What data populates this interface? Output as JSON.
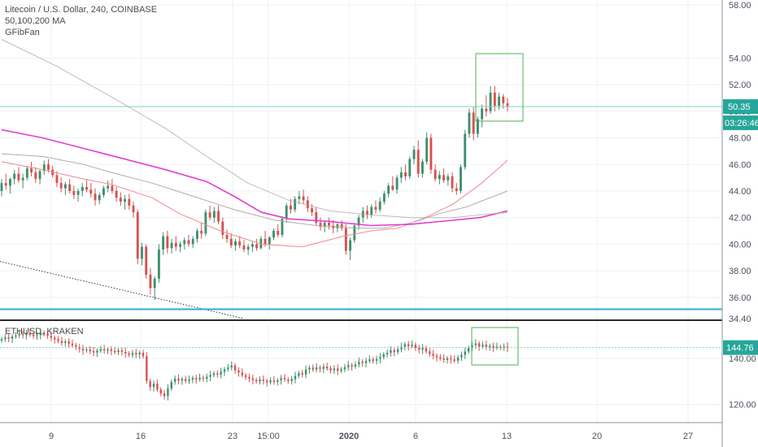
{
  "colors": {
    "up": "#3f8f6f",
    "down": "#d8504f",
    "ma50": "#f28a8a",
    "ma100": "#b7a8a8",
    "ma200": "#e040d0",
    "grid": "#eef1f5",
    "horizontal_line": "#29b0d2",
    "price_line": "#7fd2c8",
    "box": "#4caf50",
    "badge": "#26a69a",
    "axis_border": "#8d939e",
    "separator": "#2b2b2b"
  },
  "main_legend": {
    "symbol": "Litecoin / U.S. Dollar, 240, COINBASE",
    "indicator_ma": "50,100,200 MA",
    "indicator_fib": "GFibFan"
  },
  "sub_legend": {
    "symbol": "ETHUSD, KRAKEN"
  },
  "price_badge": "50.35",
  "countdown_badge": "03:26:46",
  "sub_price_badge": "144.76",
  "chart_data": [
    {
      "type": "candlestick",
      "title": "Litecoin / U.S. Dollar, 240, COINBASE",
      "ylim": [
        34.4,
        58.0
      ],
      "y_ticks": [
        "58.00",
        "54.00",
        "52.00",
        "50.00",
        "48.00",
        "46.00",
        "44.00",
        "42.00",
        "40.00",
        "38.00",
        "36.00",
        "34.40"
      ],
      "x_ticks": [
        "9",
        "16",
        "23",
        "15:00",
        "2020",
        "6",
        "13",
        "20",
        "27"
      ],
      "x_range_days": [
        5,
        33.5
      ],
      "last_price": 50.35,
      "horizontal_line": 35.1,
      "series": [
        {
          "name": "MA 50",
          "values": [
            [
              5,
              46.2
            ],
            [
              8,
              45.6
            ],
            [
              11,
              44.9
            ],
            [
              13,
              44.5
            ],
            [
              16,
              43.5
            ],
            [
              18,
              42.3
            ],
            [
              21,
              41.0
            ],
            [
              24,
              40.0
            ],
            [
              27,
              39.8
            ],
            [
              30,
              40.6
            ],
            [
              32,
              41.0
            ],
            [
              34,
              41.2
            ],
            [
              36,
              42.0
            ],
            [
              38,
              43.0
            ],
            [
              40,
              44.5
            ],
            [
              42,
              46.3
            ]
          ]
        },
        {
          "name": "MA 100",
          "values": [
            [
              5,
              46.8
            ],
            [
              8,
              46.6
            ],
            [
              11,
              46.0
            ],
            [
              13,
              45.4
            ],
            [
              16,
              44.6
            ],
            [
              19,
              43.6
            ],
            [
              22,
              42.6
            ],
            [
              25,
              41.8
            ],
            [
              28,
              41.4
            ],
            [
              31,
              41.2
            ],
            [
              33,
              41.2
            ],
            [
              35,
              41.6
            ],
            [
              37,
              42.3
            ],
            [
              39,
              42.8
            ],
            [
              42,
              44.0
            ]
          ]
        },
        {
          "name": "MA 200",
          "values": [
            [
              5,
              48.6
            ],
            [
              8,
              48.0
            ],
            [
              11,
              47.2
            ],
            [
              14,
              46.4
            ],
            [
              17,
              45.6
            ],
            [
              20,
              44.7
            ],
            [
              22,
              43.6
            ],
            [
              24,
              42.4
            ],
            [
              26,
              41.9
            ],
            [
              29,
              41.7
            ],
            [
              32,
              41.4
            ],
            [
              35,
              41.5
            ],
            [
              38,
              41.8
            ],
            [
              40,
              42.0
            ],
            [
              42,
              42.5
            ]
          ]
        },
        {
          "name": "Fib fan 1",
          "values": [
            [
              5,
              55.4
            ],
            [
              9,
              53.4
            ],
            [
              13,
              51.1
            ],
            [
              17,
              48.7
            ],
            [
              20,
              46.6
            ],
            [
              23,
              44.6
            ],
            [
              26,
              43.3
            ],
            [
              29,
              42.5
            ],
            [
              32,
              42.2
            ],
            [
              35,
              42.0
            ],
            [
              38,
              42.0
            ],
            [
              40,
              42.2
            ],
            [
              42,
              42.4
            ]
          ]
        }
      ],
      "candles": [
        [
          44.0,
          44.9,
          43.6,
          44.6
        ],
        [
          44.6,
          45.3,
          44.1,
          44.4
        ],
        [
          44.4,
          45.0,
          43.8,
          44.9
        ],
        [
          44.9,
          45.6,
          44.5,
          45.3
        ],
        [
          45.3,
          45.8,
          44.6,
          44.8
        ],
        [
          44.8,
          45.3,
          44.2,
          45.0
        ],
        [
          45.0,
          45.9,
          44.8,
          45.7
        ],
        [
          45.7,
          46.2,
          45.1,
          45.4
        ],
        [
          45.4,
          45.8,
          44.6,
          44.9
        ],
        [
          44.9,
          45.6,
          44.5,
          45.5
        ],
        [
          45.5,
          46.3,
          45.2,
          46.0
        ],
        [
          46.0,
          46.4,
          45.4,
          45.6
        ],
        [
          45.6,
          45.9,
          45.0,
          45.2
        ],
        [
          45.2,
          45.5,
          44.3,
          44.6
        ],
        [
          44.6,
          45.0,
          43.9,
          44.2
        ],
        [
          44.2,
          44.7,
          43.7,
          44.5
        ],
        [
          44.5,
          44.9,
          43.8,
          44.0
        ],
        [
          44.0,
          44.4,
          43.4,
          43.7
        ],
        [
          43.7,
          44.2,
          43.2,
          44.0
        ],
        [
          44.0,
          44.6,
          43.6,
          44.3
        ],
        [
          44.3,
          44.9,
          43.9,
          44.1
        ],
        [
          44.1,
          44.6,
          43.5,
          43.8
        ],
        [
          43.8,
          44.2,
          42.9,
          43.3
        ],
        [
          43.3,
          43.9,
          43.0,
          43.7
        ],
        [
          43.7,
          44.4,
          43.5,
          44.2
        ],
        [
          44.2,
          44.8,
          43.9,
          44.4
        ],
        [
          44.4,
          44.9,
          43.8,
          44.0
        ],
        [
          44.0,
          44.3,
          43.2,
          43.5
        ],
        [
          43.5,
          43.9,
          42.9,
          43.2
        ],
        [
          43.2,
          43.7,
          42.6,
          43.4
        ],
        [
          43.4,
          43.8,
          42.6,
          42.9
        ],
        [
          42.9,
          43.2,
          42.0,
          42.4
        ],
        [
          42.4,
          42.6,
          38.5,
          38.9
        ],
        [
          38.9,
          40.1,
          38.4,
          39.8
        ],
        [
          39.8,
          40.0,
          37.4,
          37.7
        ],
        [
          37.7,
          38.2,
          36.2,
          36.7
        ],
        [
          36.7,
          37.6,
          35.8,
          37.4
        ],
        [
          37.4,
          40.0,
          37.1,
          39.6
        ],
        [
          39.6,
          40.9,
          39.2,
          40.6
        ],
        [
          40.6,
          41.0,
          39.3,
          39.7
        ],
        [
          39.7,
          40.4,
          39.3,
          40.1
        ],
        [
          40.1,
          40.6,
          39.5,
          39.8
        ],
        [
          39.8,
          40.2,
          39.4,
          40.0
        ],
        [
          40.0,
          40.5,
          39.6,
          40.3
        ],
        [
          40.3,
          40.7,
          39.8,
          40.0
        ],
        [
          40.0,
          40.6,
          39.7,
          40.4
        ],
        [
          40.4,
          41.2,
          40.1,
          41.0
        ],
        [
          41.0,
          41.6,
          40.4,
          40.8
        ],
        [
          40.8,
          42.6,
          40.6,
          42.4
        ],
        [
          42.4,
          42.9,
          41.8,
          42.0
        ],
        [
          42.0,
          42.8,
          41.6,
          42.5
        ],
        [
          42.5,
          42.9,
          41.5,
          41.7
        ],
        [
          41.7,
          42.0,
          40.4,
          40.7
        ],
        [
          40.7,
          41.1,
          40.1,
          40.4
        ],
        [
          40.4,
          40.8,
          39.7,
          39.9
        ],
        [
          39.9,
          40.4,
          39.5,
          40.2
        ],
        [
          40.2,
          40.6,
          39.7,
          39.9
        ],
        [
          39.9,
          40.3,
          39.4,
          39.6
        ],
        [
          39.6,
          40.0,
          39.2,
          39.8
        ],
        [
          39.8,
          40.2,
          39.4,
          40.0
        ],
        [
          40.0,
          40.4,
          39.5,
          39.7
        ],
        [
          39.7,
          40.6,
          39.6,
          40.4
        ],
        [
          40.4,
          41.0,
          39.8,
          40.0
        ],
        [
          40.0,
          40.6,
          39.6,
          40.5
        ],
        [
          40.5,
          41.2,
          40.3,
          41.0
        ],
        [
          41.0,
          41.5,
          40.5,
          40.7
        ],
        [
          40.7,
          42.1,
          40.5,
          41.9
        ],
        [
          41.9,
          43.1,
          41.6,
          42.9
        ],
        [
          42.9,
          43.4,
          42.3,
          42.6
        ],
        [
          42.6,
          43.6,
          42.4,
          43.4
        ],
        [
          43.4,
          44.0,
          43.0,
          43.6
        ],
        [
          43.6,
          44.1,
          43.0,
          43.3
        ],
        [
          43.3,
          43.6,
          42.4,
          42.7
        ],
        [
          42.7,
          43.0,
          42.1,
          42.4
        ],
        [
          42.4,
          42.8,
          41.4,
          41.6
        ],
        [
          41.6,
          42.0,
          41.0,
          41.3
        ],
        [
          41.3,
          41.8,
          40.9,
          41.6
        ],
        [
          41.6,
          42.0,
          41.1,
          41.4
        ],
        [
          41.4,
          41.8,
          40.8,
          41.2
        ],
        [
          41.2,
          41.6,
          40.9,
          41.5
        ],
        [
          41.5,
          41.8,
          41.0,
          41.2
        ],
        [
          41.2,
          41.5,
          39.2,
          39.5
        ],
        [
          39.5,
          40.5,
          38.8,
          40.3
        ],
        [
          40.3,
          41.6,
          40.1,
          41.4
        ],
        [
          41.4,
          42.2,
          41.1,
          42.0
        ],
        [
          42.0,
          42.8,
          41.6,
          42.5
        ],
        [
          42.5,
          42.9,
          41.9,
          42.2
        ],
        [
          42.2,
          43.0,
          42.0,
          42.8
        ],
        [
          42.8,
          43.3,
          42.3,
          42.6
        ],
        [
          42.6,
          43.5,
          42.4,
          43.2
        ],
        [
          43.2,
          44.0,
          43.0,
          43.8
        ],
        [
          43.8,
          44.6,
          43.5,
          44.4
        ],
        [
          44.4,
          45.1,
          44.0,
          44.1
        ],
        [
          44.1,
          45.2,
          43.8,
          45.0
        ],
        [
          45.0,
          45.8,
          44.6,
          45.4
        ],
        [
          45.4,
          46.0,
          44.8,
          45.1
        ],
        [
          45.1,
          46.6,
          44.9,
          46.4
        ],
        [
          46.4,
          47.4,
          46.0,
          47.1
        ],
        [
          47.1,
          47.8,
          45.0,
          45.3
        ],
        [
          45.3,
          46.4,
          45.0,
          46.2
        ],
        [
          46.2,
          48.4,
          46.0,
          48.0
        ],
        [
          48.0,
          48.3,
          45.3,
          45.6
        ],
        [
          45.6,
          46.0,
          44.7,
          44.9
        ],
        [
          44.9,
          45.5,
          44.5,
          45.2
        ],
        [
          45.2,
          45.7,
          44.6,
          44.8
        ],
        [
          44.8,
          45.3,
          44.4,
          45.1
        ],
        [
          45.1,
          45.4,
          43.9,
          44.2
        ],
        [
          44.2,
          44.6,
          43.7,
          44.0
        ],
        [
          44.0,
          46.0,
          43.8,
          45.8
        ],
        [
          45.8,
          48.6,
          45.6,
          48.3
        ],
        [
          48.3,
          50.2,
          48.0,
          49.9
        ],
        [
          49.9,
          50.3,
          47.8,
          48.3
        ],
        [
          48.3,
          49.6,
          48.0,
          49.4
        ],
        [
          49.4,
          50.5,
          48.8,
          50.2
        ],
        [
          50.2,
          51.2,
          49.6,
          50.0
        ],
        [
          50.0,
          51.9,
          49.8,
          51.4
        ],
        [
          51.4,
          51.9,
          50.0,
          50.4
        ],
        [
          50.4,
          51.4,
          50.1,
          51.1
        ],
        [
          51.1,
          51.3,
          50.2,
          50.6
        ],
        [
          50.6,
          51.0,
          50.0,
          50.35
        ]
      ]
    },
    {
      "type": "candlestick",
      "title": "ETHUSD, KRAKEN",
      "ylim": [
        112,
        156
      ],
      "y_ticks": [
        "140.00",
        "120.00"
      ],
      "last_price": 144.76,
      "closes": [
        148.5,
        149.2,
        148.7,
        149.6,
        150.1,
        150.8,
        150.2,
        151.0,
        150.4,
        149.8,
        150.2,
        151.2,
        150.6,
        149.9,
        149.1,
        148.4,
        147.6,
        146.8,
        147.4,
        146.5,
        145.8,
        145.0,
        144.2,
        143.5,
        143.9,
        143.2,
        142.6,
        143.4,
        144.1,
        143.5,
        144.0,
        143.3,
        142.8,
        143.5,
        142.9,
        142.2,
        141.6,
        142.4,
        141.8,
        142.5,
        141.0,
        130.2,
        127.5,
        129.0,
        126.4,
        124.8,
        123.6,
        126.9,
        129.8,
        131.2,
        130.4,
        131.0,
        130.2,
        130.8,
        131.5,
        130.9,
        131.6,
        131.2,
        132.0,
        132.8,
        133.5,
        133.0,
        134.2,
        135.3,
        136.1,
        136.9,
        134.8,
        133.9,
        132.7,
        131.9,
        131.2,
        130.6,
        130.0,
        130.8,
        130.2,
        129.6,
        130.4,
        129.8,
        130.5,
        131.4,
        130.8,
        130.2,
        131.0,
        132.4,
        133.6,
        133.0,
        135.2,
        136.0,
        135.2,
        136.1,
        135.5,
        136.4,
        135.7,
        134.9,
        135.6,
        134.6,
        135.3,
        136.2,
        137.1,
        136.5,
        137.4,
        138.6,
        138.0,
        138.9,
        139.6,
        139.0,
        139.8,
        140.6,
        141.8,
        142.5,
        143.6,
        142.8,
        144.0,
        145.1,
        146.2,
        145.4,
        146.0,
        144.6,
        143.8,
        144.5,
        143.1,
        142.0,
        141.2,
        140.6,
        140.0,
        139.4,
        140.1,
        139.6,
        139.0,
        140.5,
        141.6,
        143.0,
        144.6,
        145.8,
        146.6,
        145.2,
        146.0,
        145.0,
        145.5,
        144.7,
        145.1,
        144.9,
        145.2,
        144.76
      ]
    }
  ]
}
